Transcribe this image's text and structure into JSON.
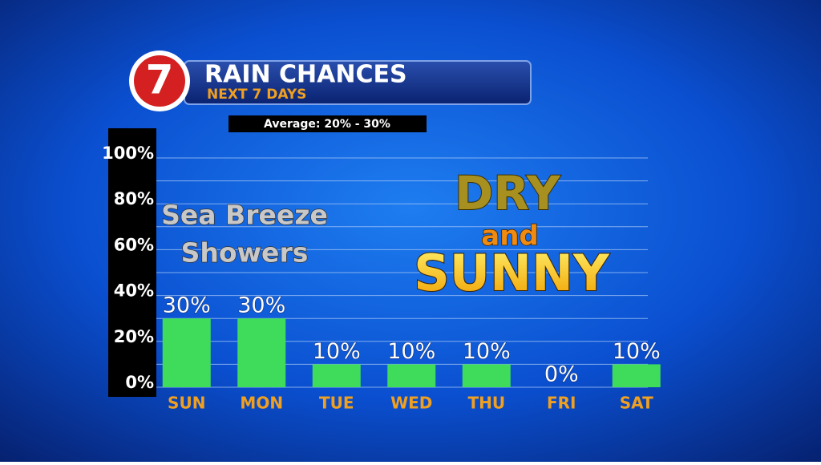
{
  "chart_data": {
    "type": "bar",
    "logo": "7",
    "title": "RAIN CHANCES",
    "subtitle": "NEXT 7 DAYS",
    "annotations": {
      "average": "Average: 20% - 30%",
      "left": [
        "Sea Breeze",
        "Showers"
      ],
      "right": [
        "DRY",
        "and",
        "SUNNY"
      ]
    },
    "categories": [
      "SUN",
      "MON",
      "TUE",
      "WED",
      "THU",
      "FRI",
      "SAT"
    ],
    "values": [
      30,
      30,
      10,
      10,
      10,
      0,
      10
    ],
    "value_labels": [
      "30%",
      "30%",
      "10%",
      "10%",
      "10%",
      "0%",
      "10%"
    ],
    "color": "#3fdc5c",
    "ylim": [
      0,
      100
    ],
    "yticks": [
      {
        "value": 0,
        "label": "0%"
      },
      {
        "value": 20,
        "label": "20%"
      },
      {
        "value": 40,
        "label": "40%"
      },
      {
        "value": 60,
        "label": "60%"
      },
      {
        "value": 80,
        "label": "80%"
      },
      {
        "value": 100,
        "label": "100%"
      }
    ],
    "grid": true
  }
}
